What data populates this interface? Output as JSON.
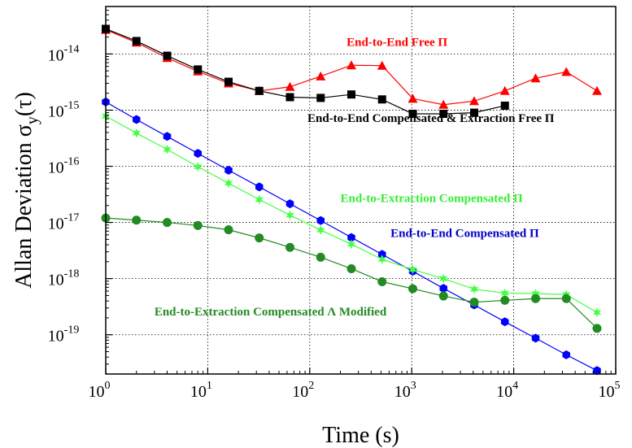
{
  "chart_data": {
    "type": "scatter",
    "xscale": "log",
    "yscale": "log",
    "xlim": [
      1,
      100000
    ],
    "ylim": [
      2e-20,
      7e-14
    ],
    "grid": true,
    "xlabel": "Time (s)",
    "ylabel": "Allan Deviation σ_y(τ)",
    "ylabel_main": "Allan Deviation σ",
    "ylabel_sub": "y",
    "ylabel_tail": "(τ)",
    "x_ticks": [
      {
        "base": "10",
        "exp": "0",
        "value": 1
      },
      {
        "base": "10",
        "exp": "1",
        "value": 10
      },
      {
        "base": "10",
        "exp": "2",
        "value": 100
      },
      {
        "base": "10",
        "exp": "3",
        "value": 1000
      },
      {
        "base": "10",
        "exp": "4",
        "value": 10000
      },
      {
        "base": "10",
        "exp": "5",
        "value": 100000
      }
    ],
    "y_ticks": [
      {
        "base": "10",
        "exp": "-19",
        "value": 1e-19
      },
      {
        "base": "10",
        "exp": "-18",
        "value": 1e-18
      },
      {
        "base": "10",
        "exp": "-17",
        "value": 1e-17
      },
      {
        "base": "10",
        "exp": "-16",
        "value": 1e-16
      },
      {
        "base": "10",
        "exp": "-15",
        "value": 1e-15
      },
      {
        "base": "10",
        "exp": "-14",
        "value": 1e-14
      }
    ],
    "series": [
      {
        "name": "End-to-End Free Π",
        "color": "#ff0000",
        "marker": "triangle",
        "x": [
          1,
          2,
          4,
          8,
          16,
          32,
          64,
          128,
          256,
          512,
          1024,
          2048,
          4096,
          8192,
          16384,
          32768,
          65536
        ],
        "y": [
          2.7e-14,
          1.6e-14,
          8.5e-15,
          4.9e-15,
          3e-15,
          2.2e-15,
          2.6e-15,
          4e-15,
          6.3e-15,
          6.2e-15,
          1.6e-15,
          1.25e-15,
          1.45e-15,
          2.2e-15,
          3.7e-15,
          4.8e-15,
          2.2e-15
        ]
      },
      {
        "name": "End-to-End Compensated & Extraction Free Π",
        "color": "#000000",
        "marker": "square",
        "x": [
          1,
          2,
          4,
          8,
          16,
          32,
          64,
          128,
          256,
          512,
          1024,
          2048,
          4096,
          8192
        ],
        "y": [
          2.8e-14,
          1.7e-14,
          9.3e-15,
          5.3e-15,
          3.2e-15,
          2.2e-15,
          1.7e-15,
          1.65e-15,
          1.9e-15,
          1.55e-15,
          8.6e-16,
          8.6e-16,
          9e-16,
          1.2e-15
        ]
      },
      {
        "name": "End-to-End Compensated Π",
        "color": "#0000ff",
        "marker": "hexagon",
        "x": [
          1,
          2,
          4,
          8,
          16,
          32,
          64,
          128,
          256,
          512,
          1024,
          2048,
          4096,
          8192,
          16384,
          32768,
          65536
        ],
        "y": [
          1.4e-15,
          6.8e-16,
          3.4e-16,
          1.7e-16,
          8.5e-17,
          4.3e-17,
          2.15e-17,
          1.08e-17,
          5.4e-18,
          2.7e-18,
          1.35e-18,
          6.7e-19,
          3.4e-19,
          1.7e-19,
          8.7e-20,
          4.4e-20,
          2.3e-20
        ]
      },
      {
        "name": "End-to-Extraction Compensated Π",
        "color": "#44ff44",
        "marker": "star",
        "x": [
          1,
          2,
          4,
          8,
          16,
          32,
          64,
          128,
          256,
          512,
          1024,
          2048,
          4096,
          8192,
          16384,
          32768,
          65536
        ],
        "y": [
          7.8e-16,
          3.9e-16,
          2e-16,
          9.8e-17,
          5e-17,
          2.55e-17,
          1.35e-17,
          7.3e-18,
          4.1e-18,
          2.2e-18,
          1.45e-18,
          1e-18,
          6.5e-19,
          5.5e-19,
          5.4e-19,
          5.2e-19,
          2.5e-19
        ]
      },
      {
        "name": "End-to-Extraction Compensated Λ Modified",
        "color": "#228b22",
        "marker": "circle",
        "x": [
          1,
          2,
          4,
          8,
          16,
          32,
          64,
          128,
          256,
          512,
          1024,
          2048,
          4096,
          8192,
          16384,
          32768,
          65536
        ],
        "y": [
          1.2e-17,
          1.1e-17,
          1e-17,
          8.8e-18,
          7.4e-18,
          5.3e-18,
          3.6e-18,
          2.4e-18,
          1.5e-18,
          8.8e-19,
          6.6e-19,
          4.9e-19,
          3.8e-19,
          4.1e-19,
          4.4e-19,
          4.4e-19,
          1.3e-19
        ]
      }
    ],
    "annotations": [
      {
        "text": "End-to-End Free Π",
        "color": "#ff0000",
        "at_x": 230,
        "at_y": 1.4e-14
      },
      {
        "text": "End-to-End Compensated & Extraction Free Π",
        "color": "#000000",
        "at_x": 95,
        "at_y": 6.2e-16
      },
      {
        "text": "End-to-Extraction Compensated Π",
        "color": "#33ee33",
        "at_x": 200,
        "at_y": 2.3e-17
      },
      {
        "text": "End-to-End Compensated Π",
        "color": "#0000cc",
        "at_x": 620,
        "at_y": 5.5e-18
      },
      {
        "text": "End-to-Extraction Compensated Λ Modified",
        "color": "#228b22",
        "at_x": 3,
        "at_y": 2.2e-19
      }
    ]
  }
}
